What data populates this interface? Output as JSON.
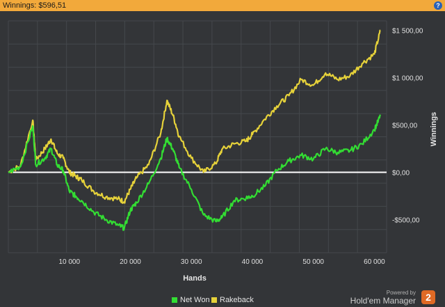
{
  "titlebar": {
    "label": "Winnings: $596,51",
    "help_icon": "question-icon",
    "help_glyph": "?"
  },
  "chart_data": {
    "type": "line",
    "xlabel": "Hands",
    "ylabel": "Winnings",
    "xlim": [
      0,
      62000
    ],
    "ylim": [
      -850,
      1600
    ],
    "x_ticks": [
      10000,
      20000,
      30000,
      40000,
      50000,
      60000
    ],
    "x_tick_labels": [
      "10 000",
      "20 000",
      "30 000",
      "40 000",
      "50 000",
      "60 000"
    ],
    "y_ticks": [
      -500,
      0,
      500,
      1000,
      1500
    ],
    "y_tick_labels": [
      "-$500,00",
      "$0,00",
      "$500,00",
      "$1 000,00",
      "$1 500,00"
    ],
    "grid": true,
    "legend_position": "bottom-center",
    "series": [
      {
        "name": "Net Won",
        "color": "#33dd33",
        "x": [
          0,
          2000,
          4000,
          4500,
          6000,
          7000,
          8000,
          9000,
          10000,
          11000,
          12000,
          14000,
          16000,
          18000,
          19000,
          20000,
          21000,
          23000,
          25000,
          26000,
          27000,
          28000,
          30000,
          32000,
          34000,
          35000,
          37000,
          39000,
          40000,
          42000,
          44000,
          46000,
          48000,
          50000,
          52000,
          54000,
          56000,
          58000,
          60000,
          61000
        ],
        "values": [
          0,
          60,
          490,
          80,
          150,
          250,
          80,
          20,
          -200,
          -250,
          -300,
          -420,
          -500,
          -560,
          -590,
          -400,
          -320,
          -120,
          150,
          360,
          240,
          50,
          -180,
          -450,
          -520,
          -480,
          -300,
          -270,
          -250,
          -150,
          20,
          120,
          180,
          140,
          250,
          210,
          230,
          300,
          450,
          596.51
        ]
      },
      {
        "name": "Rakeback",
        "color": "#e6d23a",
        "x": [
          0,
          2000,
          4000,
          4500,
          6000,
          7000,
          8000,
          9000,
          10000,
          11000,
          12000,
          14000,
          16000,
          18000,
          19000,
          20000,
          21000,
          23000,
          25000,
          26000,
          27000,
          28000,
          30000,
          32000,
          34000,
          35000,
          37000,
          39000,
          40000,
          42000,
          44000,
          46000,
          48000,
          50000,
          52000,
          54000,
          56000,
          58000,
          60000,
          61000
        ],
        "values": [
          0,
          70,
          550,
          130,
          250,
          350,
          200,
          150,
          0,
          -40,
          -80,
          -200,
          -260,
          -280,
          -310,
          -180,
          -60,
          80,
          420,
          760,
          600,
          380,
          150,
          0,
          90,
          240,
          300,
          330,
          400,
          560,
          700,
          810,
          980,
          920,
          1050,
          980,
          1020,
          1150,
          1250,
          1500
        ]
      }
    ]
  },
  "legend": {
    "items": [
      "Net Won",
      "Rakeback"
    ]
  },
  "brand": {
    "powered_by": "Powered by",
    "name": "Hold'em Manager",
    "badge": "2"
  }
}
